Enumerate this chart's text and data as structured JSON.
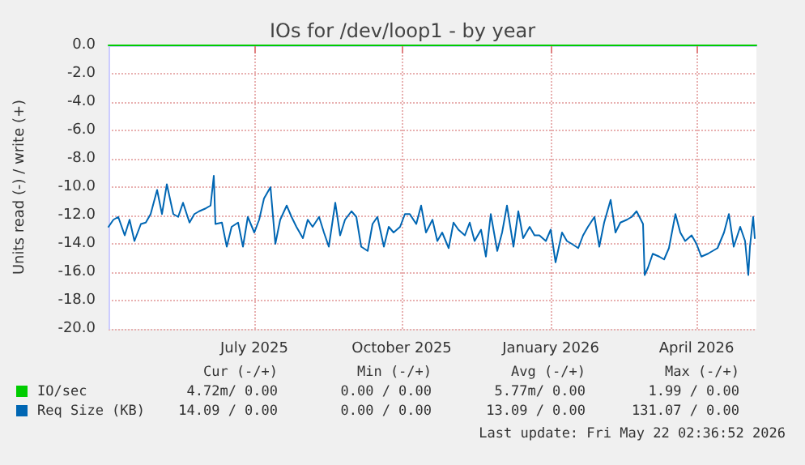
{
  "chart_data": {
    "type": "line",
    "title": "IOs for /dev/loop1 - by year",
    "ylabel": "Units read (-) / write (+)",
    "xlim": [
      "2025-04-17",
      "2026-05-22"
    ],
    "xticks": [
      {
        "value": "2025-07-16",
        "label": "July 2025"
      },
      {
        "value": "2025-10-15",
        "label": "October 2025"
      },
      {
        "value": "2026-01-15",
        "label": "January 2026"
      },
      {
        "value": "2026-04-15",
        "label": "April 2026"
      }
    ],
    "ylim": [
      -20,
      0
    ],
    "yticks": [
      {
        "value": -20,
        "label": "-20.0"
      },
      {
        "value": -18,
        "label": "-18.0"
      },
      {
        "value": -16,
        "label": "-16.0"
      },
      {
        "value": -14,
        "label": "-14.0"
      },
      {
        "value": -12,
        "label": "-12.0"
      },
      {
        "value": -10,
        "label": "-10.0"
      },
      {
        "value": -8,
        "label": "-8.0"
      },
      {
        "value": -6,
        "label": "-6.0"
      },
      {
        "value": -4,
        "label": "-4.0"
      },
      {
        "value": -2,
        "label": "-2.0"
      },
      {
        "value": 0,
        "label": "0.0"
      }
    ],
    "grid": true,
    "legend": "bottom",
    "marker": "none",
    "line_style": "solid",
    "series": [
      {
        "name": "IO/sec",
        "color": "#00cc00",
        "x": [
          "2025-04-17",
          "2026-05-22"
        ],
        "values": [
          0,
          0
        ]
      },
      {
        "name": "Req Size (KB)",
        "color": "#0066b3",
        "x": [
          "2025-04-17",
          "2025-04-20",
          "2025-04-23",
          "2025-04-27",
          "2025-04-30",
          "2025-05-03",
          "2025-05-07",
          "2025-05-10",
          "2025-05-13",
          "2025-05-17",
          "2025-05-20",
          "2025-05-23",
          "2025-05-27",
          "2025-05-30",
          "2025-06-02",
          "2025-06-06",
          "2025-06-09",
          "2025-06-12",
          "2025-06-16",
          "2025-06-19",
          "2025-06-21",
          "2025-06-22",
          "2025-06-26",
          "2025-06-29",
          "2025-07-02",
          "2025-07-06",
          "2025-07-09",
          "2025-07-12",
          "2025-07-16",
          "2025-07-19",
          "2025-07-22",
          "2025-07-26",
          "2025-07-29",
          "2025-08-01",
          "2025-08-05",
          "2025-08-08",
          "2025-08-11",
          "2025-08-15",
          "2025-08-18",
          "2025-08-21",
          "2025-08-25",
          "2025-08-28",
          "2025-08-31",
          "2025-09-04",
          "2025-09-07",
          "2025-09-10",
          "2025-09-14",
          "2025-09-17",
          "2025-09-20",
          "2025-09-24",
          "2025-09-27",
          "2025-09-30",
          "2025-10-04",
          "2025-10-07",
          "2025-10-10",
          "2025-10-14",
          "2025-10-17",
          "2025-10-20",
          "2025-10-24",
          "2025-10-27",
          "2025-10-30",
          "2025-11-03",
          "2025-11-06",
          "2025-11-09",
          "2025-11-13",
          "2025-11-16",
          "2025-11-19",
          "2025-11-23",
          "2025-11-26",
          "2025-11-29",
          "2025-12-03",
          "2025-12-06",
          "2025-12-09",
          "2025-12-13",
          "2025-12-16",
          "2025-12-19",
          "2025-12-23",
          "2025-12-26",
          "2025-12-29",
          "2026-01-02",
          "2026-01-05",
          "2026-01-08",
          "2026-01-12",
          "2026-01-15",
          "2026-01-18",
          "2026-01-22",
          "2026-01-25",
          "2026-01-28",
          "2026-02-01",
          "2026-02-04",
          "2026-02-07",
          "2026-02-11",
          "2026-02-14",
          "2026-02-17",
          "2026-02-21",
          "2026-02-24",
          "2026-02-27",
          "2026-03-03",
          "2026-03-06",
          "2026-03-09",
          "2026-03-13",
          "2026-03-14",
          "2026-03-16",
          "2026-03-19",
          "2026-03-23",
          "2026-03-26",
          "2026-03-29",
          "2026-04-02",
          "2026-04-05",
          "2026-04-08",
          "2026-04-12",
          "2026-04-15",
          "2026-04-18",
          "2026-04-22",
          "2026-04-25",
          "2026-04-28",
          "2026-05-02",
          "2026-05-05",
          "2026-05-08",
          "2026-05-12",
          "2026-05-15",
          "2026-05-17",
          "2026-05-18",
          "2026-05-20",
          "2026-05-21"
        ],
        "values": [
          -12.8,
          -12.3,
          -12.1,
          -13.4,
          -12.3,
          -13.8,
          -12.6,
          -12.5,
          -11.9,
          -10.2,
          -11.9,
          -9.8,
          -11.9,
          -12.1,
          -11.1,
          -12.5,
          -11.9,
          -11.7,
          -11.5,
          -11.3,
          -9.2,
          -12.6,
          -12.5,
          -14.2,
          -12.8,
          -12.5,
          -14.2,
          -12.1,
          -13.2,
          -12.3,
          -10.8,
          -10.0,
          -14.0,
          -12.3,
          -11.3,
          -12.1,
          -12.8,
          -13.6,
          -12.3,
          -12.8,
          -12.1,
          -13.2,
          -14.2,
          -11.1,
          -13.4,
          -12.3,
          -11.7,
          -12.1,
          -14.2,
          -14.5,
          -12.6,
          -12.1,
          -14.2,
          -12.8,
          -13.2,
          -12.8,
          -11.9,
          -11.9,
          -12.6,
          -11.3,
          -13.2,
          -12.3,
          -13.8,
          -13.2,
          -14.3,
          -12.5,
          -13.0,
          -13.4,
          -12.5,
          -13.8,
          -13.0,
          -14.9,
          -11.9,
          -14.5,
          -13.2,
          -11.3,
          -14.2,
          -11.7,
          -13.6,
          -12.8,
          -13.4,
          -13.4,
          -13.8,
          -13.0,
          -15.3,
          -13.2,
          -13.8,
          -14.0,
          -14.3,
          -13.4,
          -12.8,
          -12.1,
          -14.2,
          -12.5,
          -10.9,
          -13.2,
          -12.5,
          -12.3,
          -12.1,
          -11.7,
          -12.6,
          -16.2,
          -15.7,
          -14.7,
          -14.9,
          -15.1,
          -14.3,
          -11.9,
          -13.2,
          -13.8,
          -13.4,
          -14.0,
          -14.9,
          -14.7,
          -14.5,
          -14.3,
          -13.2,
          -11.9,
          -14.2,
          -12.8,
          -13.8,
          -16.2,
          -14.2,
          -12.1,
          -13.6
        ]
      }
    ],
    "annotations": [
      "Cur (-/+)",
      "Min (-/+)",
      "Avg (-/+)",
      "Max (-/+)",
      "4.72m/ 0.00",
      "0.00 / 0.00",
      "5.77m/ 0.00",
      "1.99 / 0.00",
      "14.09 / 0.00",
      "0.00 / 0.00",
      "13.09 / 0.00",
      "131.07 / 0.00",
      "Last update: Fri May 22 02:36:52 2026"
    ]
  }
}
